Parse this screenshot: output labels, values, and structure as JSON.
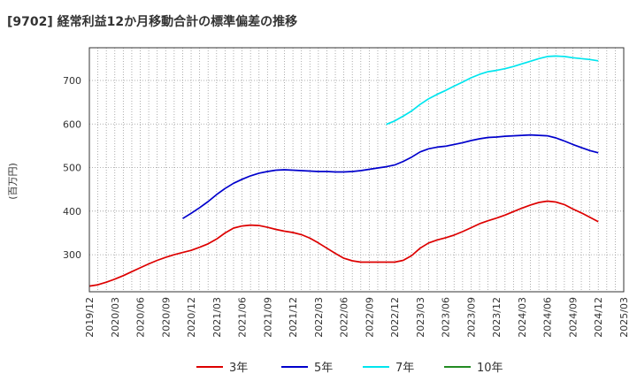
{
  "chart_data": {
    "type": "line",
    "title": "[9702]  経常利益12か月移動合計の標準偏差の推移",
    "ylabel": "(百万円)",
    "xlabel": "",
    "ylim": [
      215,
      775
    ],
    "yticks": [
      300,
      400,
      500,
      600,
      700
    ],
    "x_ticks": [
      "2019/12",
      "2020/03",
      "2020/06",
      "2020/09",
      "2020/12",
      "2021/03",
      "2021/06",
      "2021/09",
      "2021/12",
      "2022/03",
      "2022/06",
      "2022/09",
      "2022/12",
      "2023/03",
      "2023/06",
      "2023/09",
      "2023/12",
      "2024/03",
      "2024/06",
      "2024/09",
      "2024/12",
      "2025/03"
    ],
    "grid": true,
    "legend_position": "bottom",
    "series": [
      {
        "name": "3年",
        "color": "#dd0000",
        "points": [
          [
            "2019/12",
            228
          ],
          [
            "2020/01",
            231
          ],
          [
            "2020/02",
            237
          ],
          [
            "2020/03",
            244
          ],
          [
            "2020/04",
            252
          ],
          [
            "2020/05",
            261
          ],
          [
            "2020/06",
            270
          ],
          [
            "2020/07",
            279
          ],
          [
            "2020/08",
            287
          ],
          [
            "2020/09",
            294
          ],
          [
            "2020/10",
            300
          ],
          [
            "2020/11",
            305
          ],
          [
            "2020/12",
            310
          ],
          [
            "2021/01",
            317
          ],
          [
            "2021/02",
            325
          ],
          [
            "2021/03",
            336
          ],
          [
            "2021/04",
            350
          ],
          [
            "2021/05",
            361
          ],
          [
            "2021/06",
            366
          ],
          [
            "2021/07",
            368
          ],
          [
            "2021/08",
            367
          ],
          [
            "2021/09",
            363
          ],
          [
            "2021/10",
            358
          ],
          [
            "2021/11",
            354
          ],
          [
            "2021/12",
            351
          ],
          [
            "2022/01",
            346
          ],
          [
            "2022/02",
            338
          ],
          [
            "2022/03",
            327
          ],
          [
            "2022/04",
            315
          ],
          [
            "2022/05",
            303
          ],
          [
            "2022/06",
            292
          ],
          [
            "2022/07",
            286
          ],
          [
            "2022/08",
            283
          ],
          [
            "2022/09",
            283
          ],
          [
            "2022/10",
            283
          ],
          [
            "2022/11",
            283
          ],
          [
            "2022/12",
            283
          ],
          [
            "2023/01",
            287
          ],
          [
            "2023/02",
            298
          ],
          [
            "2023/03",
            315
          ],
          [
            "2023/04",
            327
          ],
          [
            "2023/05",
            334
          ],
          [
            "2023/06",
            339
          ],
          [
            "2023/07",
            345
          ],
          [
            "2023/08",
            353
          ],
          [
            "2023/09",
            362
          ],
          [
            "2023/10",
            371
          ],
          [
            "2023/11",
            378
          ],
          [
            "2023/12",
            384
          ],
          [
            "2024/01",
            391
          ],
          [
            "2024/02",
            399
          ],
          [
            "2024/03",
            407
          ],
          [
            "2024/04",
            414
          ],
          [
            "2024/05",
            420
          ],
          [
            "2024/06",
            423
          ],
          [
            "2024/07",
            421
          ],
          [
            "2024/08",
            415
          ],
          [
            "2024/09",
            405
          ],
          [
            "2024/10",
            396
          ],
          [
            "2024/11",
            386
          ],
          [
            "2024/12",
            376
          ]
        ]
      },
      {
        "name": "5年",
        "color": "#0000cc",
        "points": [
          [
            "2020/11",
            383
          ],
          [
            "2020/12",
            395
          ],
          [
            "2021/01",
            408
          ],
          [
            "2021/02",
            422
          ],
          [
            "2021/03",
            438
          ],
          [
            "2021/04",
            452
          ],
          [
            "2021/05",
            464
          ],
          [
            "2021/06",
            473
          ],
          [
            "2021/07",
            481
          ],
          [
            "2021/08",
            487
          ],
          [
            "2021/09",
            491
          ],
          [
            "2021/10",
            494
          ],
          [
            "2021/11",
            495
          ],
          [
            "2021/12",
            494
          ],
          [
            "2022/01",
            493
          ],
          [
            "2022/02",
            492
          ],
          [
            "2022/03",
            491
          ],
          [
            "2022/04",
            491
          ],
          [
            "2022/05",
            490
          ],
          [
            "2022/06",
            490
          ],
          [
            "2022/07",
            491
          ],
          [
            "2022/08",
            493
          ],
          [
            "2022/09",
            496
          ],
          [
            "2022/10",
            499
          ],
          [
            "2022/11",
            502
          ],
          [
            "2022/12",
            506
          ],
          [
            "2023/01",
            514
          ],
          [
            "2023/02",
            524
          ],
          [
            "2023/03",
            536
          ],
          [
            "2023/04",
            543
          ],
          [
            "2023/05",
            547
          ],
          [
            "2023/06",
            549
          ],
          [
            "2023/07",
            553
          ],
          [
            "2023/08",
            557
          ],
          [
            "2023/09",
            562
          ],
          [
            "2023/10",
            566
          ],
          [
            "2023/11",
            569
          ],
          [
            "2023/12",
            570
          ],
          [
            "2024/01",
            572
          ],
          [
            "2024/02",
            573
          ],
          [
            "2024/03",
            574
          ],
          [
            "2024/04",
            575
          ],
          [
            "2024/05",
            574
          ],
          [
            "2024/06",
            573
          ],
          [
            "2024/07",
            568
          ],
          [
            "2024/08",
            561
          ],
          [
            "2024/09",
            553
          ],
          [
            "2024/10",
            546
          ],
          [
            "2024/11",
            539
          ],
          [
            "2024/12",
            534
          ]
        ]
      },
      {
        "name": "7年",
        "color": "#00e5ee",
        "points": [
          [
            "2022/11",
            599
          ],
          [
            "2022/12",
            607
          ],
          [
            "2023/01",
            618
          ],
          [
            "2023/02",
            630
          ],
          [
            "2023/03",
            645
          ],
          [
            "2023/04",
            658
          ],
          [
            "2023/05",
            668
          ],
          [
            "2023/06",
            677
          ],
          [
            "2023/07",
            687
          ],
          [
            "2023/08",
            696
          ],
          [
            "2023/09",
            706
          ],
          [
            "2023/10",
            714
          ],
          [
            "2023/11",
            720
          ],
          [
            "2023/12",
            723
          ],
          [
            "2024/01",
            727
          ],
          [
            "2024/02",
            732
          ],
          [
            "2024/03",
            738
          ],
          [
            "2024/04",
            744
          ],
          [
            "2024/05",
            750
          ],
          [
            "2024/06",
            755
          ],
          [
            "2024/07",
            756
          ],
          [
            "2024/08",
            755
          ],
          [
            "2024/09",
            752
          ],
          [
            "2024/10",
            750
          ],
          [
            "2024/11",
            748
          ],
          [
            "2024/12",
            745
          ]
        ]
      },
      {
        "name": "10年",
        "color": "#228b22",
        "points": []
      }
    ]
  }
}
